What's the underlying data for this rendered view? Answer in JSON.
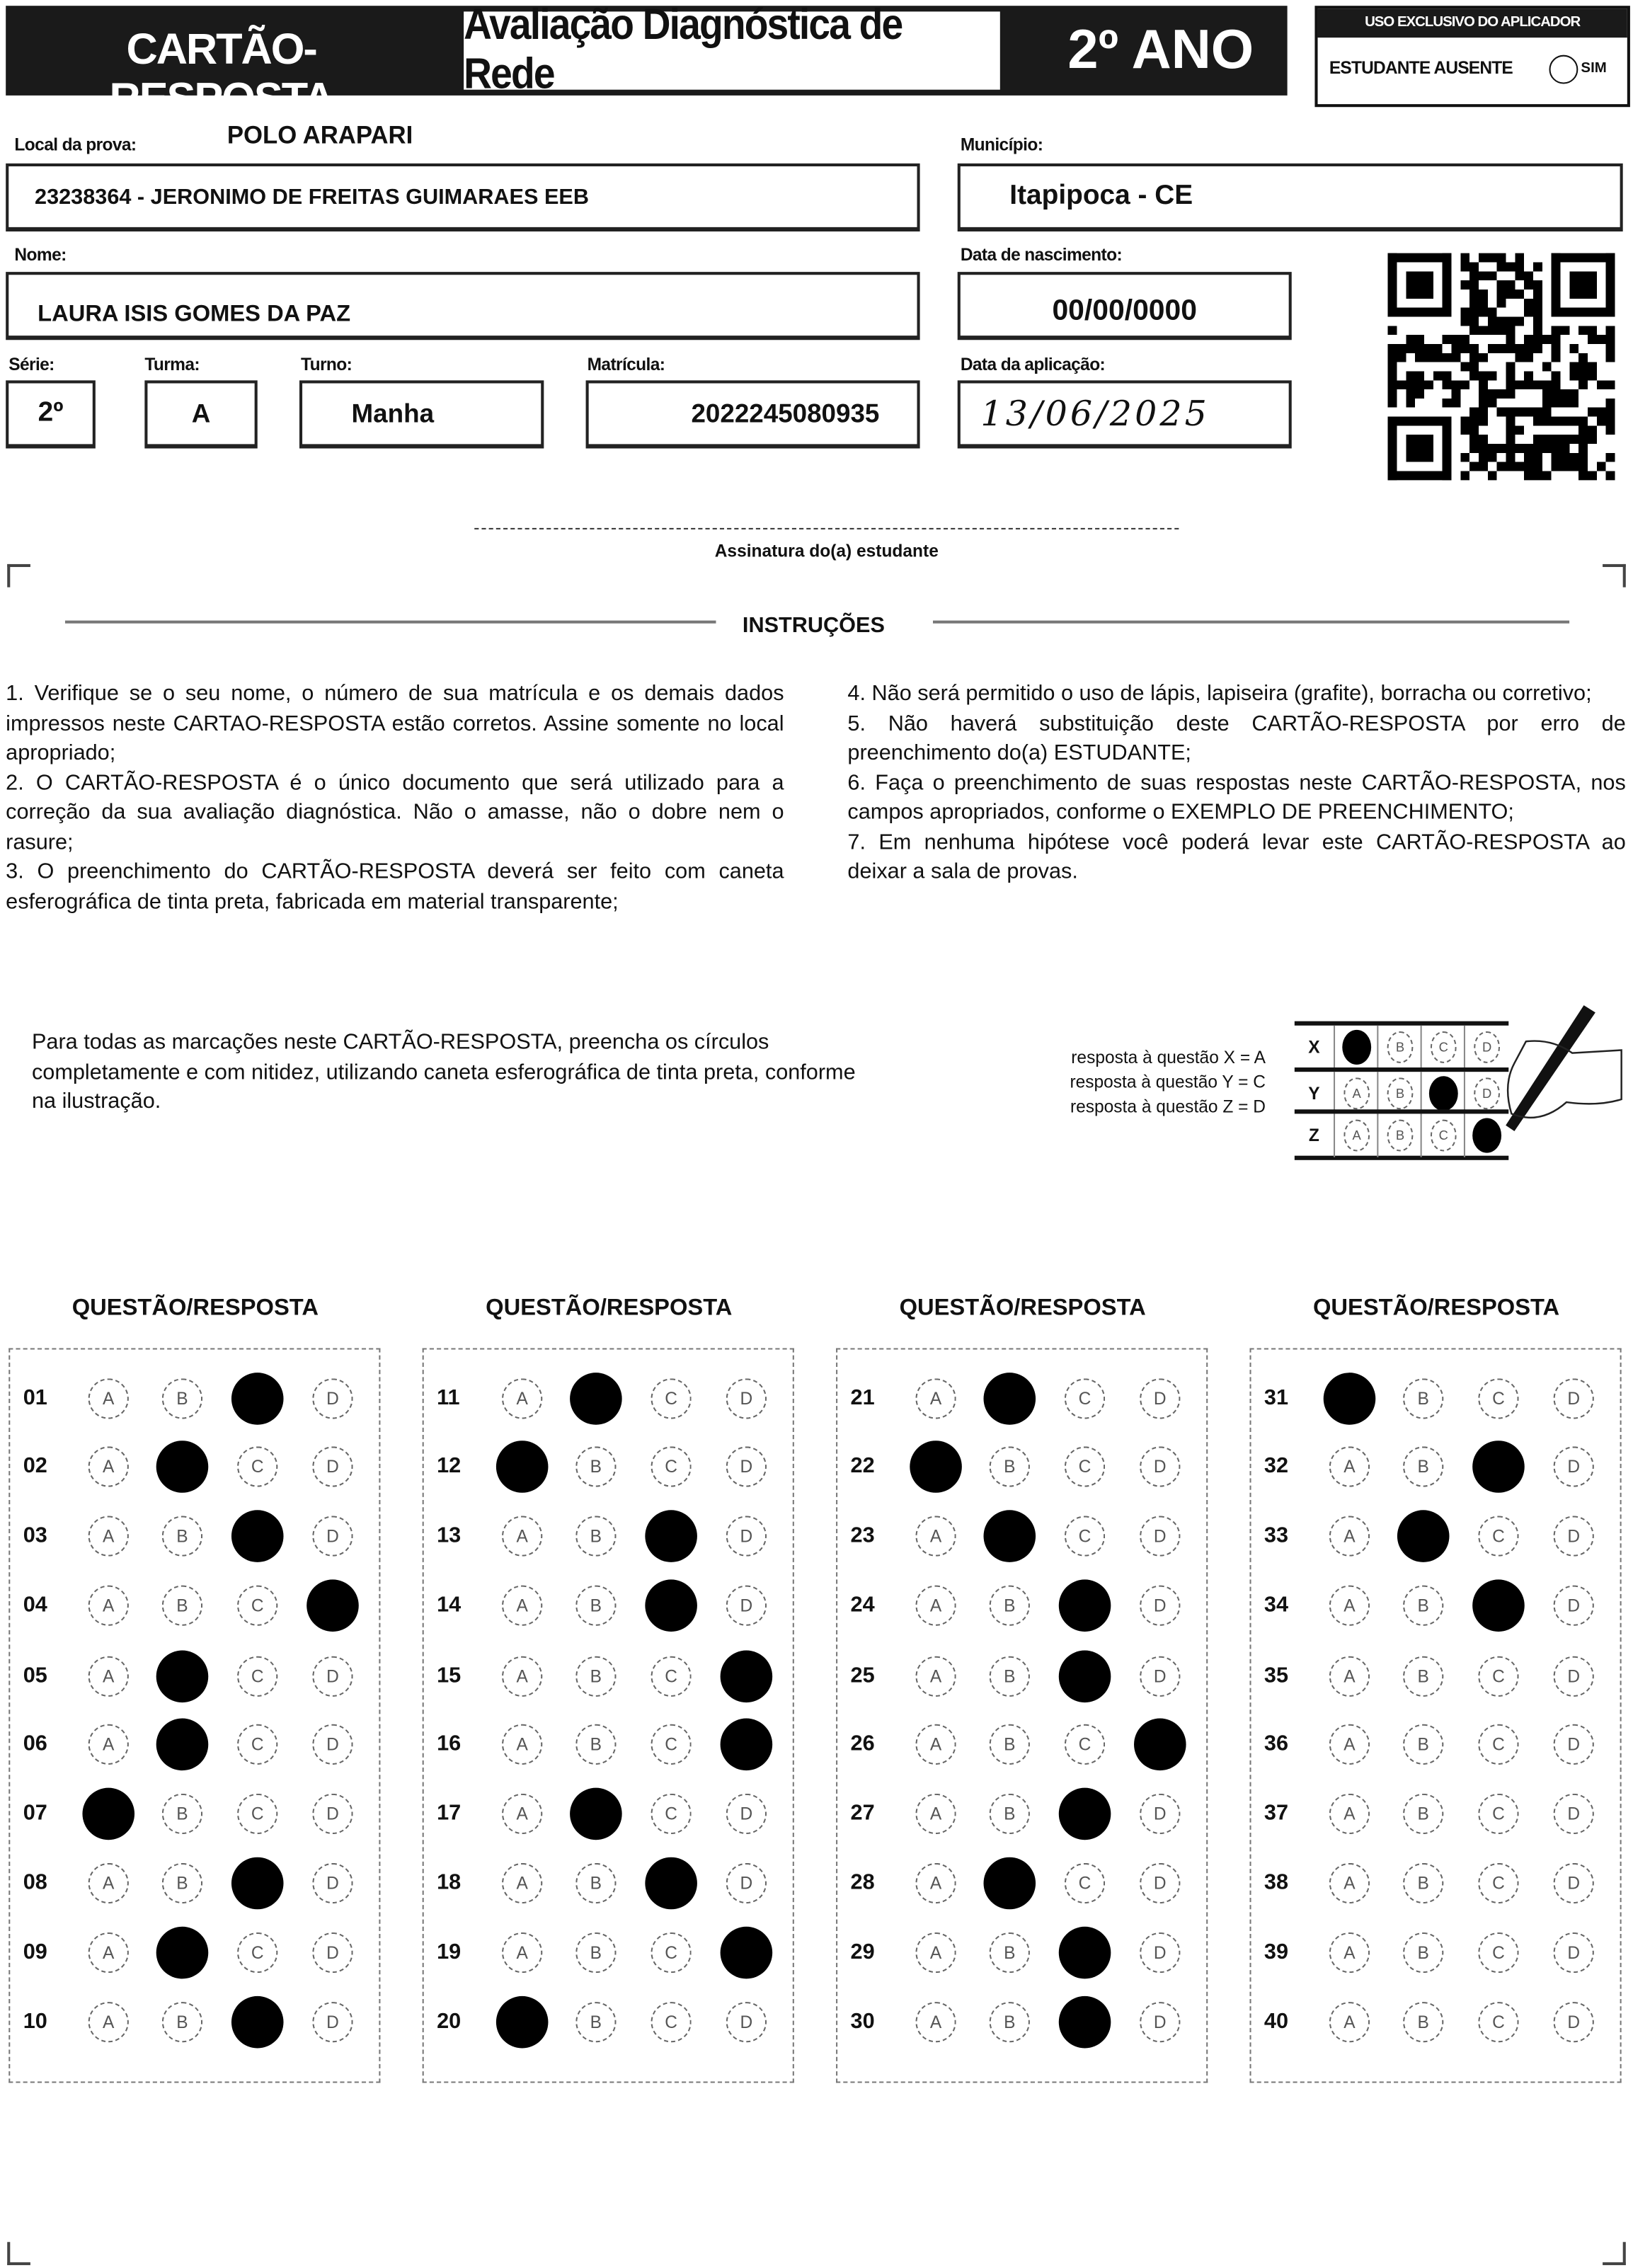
{
  "header": {
    "left_title": "CARTÃO-RESPOSTA",
    "title": "Avaliação Diagnóstica de Rede",
    "grade": "2º ANO",
    "applicator": {
      "title": "USO EXCLUSIVO DO APLICADOR",
      "absent_label": "ESTUDANTE AUSENTE",
      "yes_label": "SIM"
    }
  },
  "fields": {
    "local_label": "Local da prova:",
    "polo": "POLO ARAPARI",
    "local": "23238364 - JERONIMO DE FREITAS GUIMARAES EEB",
    "municipio_label": "Município:",
    "municipio": "Itapipoca - CE",
    "nome_label": "Nome:",
    "nome": "LAURA ISIS GOMES DA PAZ",
    "nasc_label": "Data de nascimento:",
    "nasc": "00/00/0000",
    "serie_label": "Série:",
    "serie": "2º",
    "turma_label": "Turma:",
    "turma": "A",
    "turno_label": "Turno:",
    "turno": "Manha",
    "matricula_label": "Matrícula:",
    "matricula": "2022245080935",
    "aplic_label": "Data da aplicação:",
    "aplic": "13/06/2025"
  },
  "signature_label": "Assinatura do(a) estudante",
  "instructions": {
    "title": "INSTRUÇÕES",
    "left": [
      "1. Verifique se o seu nome, o número de sua matrícula e os demais dados impressos neste CARTAO-RESPOSTA estão corretos. Assine somente no local apropriado;",
      "2. O CARTÃO-RESPOSTA é o único documento que será utilizado para a correção da sua avaliação diagnóstica. Não o amasse, não o dobre nem o rasure;",
      "3. O preenchimento do CARTÃO-RESPOSTA deverá ser feito com caneta esferográfica de tinta preta, fabricada em material transparente;"
    ],
    "right": [
      "4. Não será permitido o uso de lápis, lapiseira (grafite), borracha ou corretivo;",
      "5. Não haverá substituição deste CARTÃO-RESPOSTA por erro de preenchimento do(a) ESTUDANTE;",
      "6. Faça o preenchimento de suas respostas neste CARTÃO-RESPOSTA, nos campos apropriados, conforme o EXEMPLO DE PREENCHIMENTO;",
      "7. Em nenhuma hipótese você poderá levar este CARTÃO-RESPOSTA ao deixar a sala de provas."
    ]
  },
  "example": {
    "text": "Para todas as marcações neste CARTÃO-RESPOSTA, preencha os círculos completamente e com nitidez, utilizando caneta esferográfica de tinta preta, conforme na ilustração.",
    "labels": [
      "resposta à questão X = A",
      "resposta à questão Y = C",
      "resposta à questão Z = D"
    ],
    "rows": [
      {
        "q": "X",
        "answer": "A"
      },
      {
        "q": "Y",
        "answer": "C"
      },
      {
        "q": "Z",
        "answer": "D"
      }
    ]
  },
  "answers_header": "QUESTÃO/RESPOSTA",
  "options": [
    "A",
    "B",
    "C",
    "D"
  ],
  "answers": [
    "C",
    "B",
    "C",
    "D",
    "B",
    "B",
    "A",
    "C",
    "B",
    "C",
    "B",
    "A",
    "C",
    "C",
    "D",
    "D",
    "B",
    "C",
    "D",
    "A",
    "B",
    "A",
    "B",
    "C",
    "C",
    "D",
    "C",
    "B",
    "C",
    "C",
    "A",
    "C",
    "B",
    "C",
    "",
    "",
    "",
    "",
    "",
    ""
  ]
}
